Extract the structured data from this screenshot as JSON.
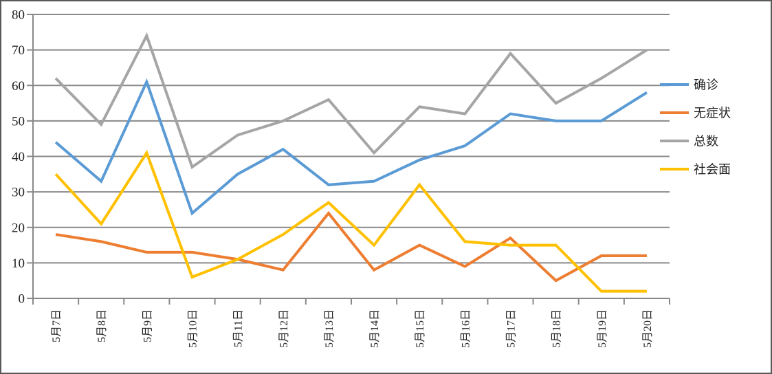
{
  "chart_data": {
    "type": "line",
    "title": "",
    "xlabel": "",
    "ylabel": "",
    "categories": [
      "5月7日",
      "5月8日",
      "5月9日",
      "5月10日",
      "5月11日",
      "5月12日",
      "5月13日",
      "5月14日",
      "5月15日",
      "5月16日",
      "5月17日",
      "5月18日",
      "5月19日",
      "5月20日"
    ],
    "series": [
      {
        "name": "确诊",
        "color": "#5B9BD5",
        "values": [
          44,
          33,
          61,
          24,
          35,
          42,
          32,
          33,
          39,
          43,
          52,
          50,
          50,
          58
        ]
      },
      {
        "name": "无症状",
        "color": "#ED7D31",
        "values": [
          18,
          16,
          13,
          13,
          11,
          8,
          24,
          8,
          15,
          9,
          17,
          5,
          12,
          12
        ]
      },
      {
        "name": "总数",
        "color": "#A5A5A5",
        "values": [
          62,
          49,
          74,
          37,
          46,
          50,
          56,
          41,
          54,
          52,
          69,
          55,
          62,
          70
        ]
      },
      {
        "name": "社会面",
        "color": "#FFC000",
        "values": [
          35,
          21,
          41,
          6,
          11,
          18,
          27,
          15,
          32,
          16,
          15,
          15,
          2,
          2
        ]
      }
    ],
    "ylim": [
      0,
      80
    ],
    "ytick_step": 10,
    "ytick_labels": [
      "0",
      "10",
      "20",
      "30",
      "40",
      "50",
      "60",
      "70",
      "80"
    ],
    "grid": true,
    "legend_position": "right",
    "colors": {
      "gridline": "#898989",
      "axis": "#898989",
      "text": "#1f1f1f",
      "border": "#595959",
      "background": "#ffffff"
    }
  }
}
